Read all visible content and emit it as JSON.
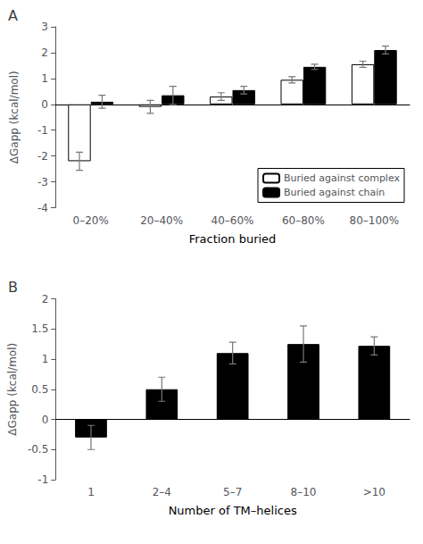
{
  "chart_data": [
    {
      "type": "bar",
      "title": "A",
      "categories": [
        "0–20%",
        "20–40%",
        "40–60%",
        "60–80%",
        "80–100%"
      ],
      "series": [
        {
          "name": "Buried against complex",
          "color": "#ffffff",
          "values": [
            -2.2,
            -0.1,
            0.3,
            0.95,
            1.55
          ],
          "errors": [
            0.35,
            0.25,
            0.15,
            0.12,
            0.12
          ]
        },
        {
          "name": "Buried against chain",
          "color": "#000000",
          "values": [
            0.1,
            0.35,
            0.55,
            1.45,
            2.1
          ],
          "errors": [
            0.25,
            0.35,
            0.15,
            0.1,
            0.15
          ]
        }
      ],
      "xlabel": "Fraction buried",
      "ylabel": "ΔGapp (kcal/mol)",
      "ylim": [
        -4,
        3
      ],
      "yticks": [
        -4,
        -3,
        -2,
        -1,
        0,
        1,
        2,
        3
      ],
      "grid": false,
      "legend": "lower right"
    },
    {
      "type": "bar",
      "title": "B",
      "categories": [
        "1",
        "2–4",
        "5–7",
        "8–10",
        ">10"
      ],
      "color": "#000000",
      "values": [
        -0.3,
        0.5,
        1.1,
        1.25,
        1.22
      ],
      "errors": [
        0.2,
        0.2,
        0.18,
        0.3,
        0.15
      ],
      "xlabel": "Number of TM–helices",
      "ylabel": "ΔGapp (kcal/mol)",
      "ylim": [
        -1,
        2
      ],
      "yticks": [
        -1,
        -0.5,
        0,
        0.5,
        1,
        1.5,
        2
      ],
      "grid": false
    }
  ]
}
